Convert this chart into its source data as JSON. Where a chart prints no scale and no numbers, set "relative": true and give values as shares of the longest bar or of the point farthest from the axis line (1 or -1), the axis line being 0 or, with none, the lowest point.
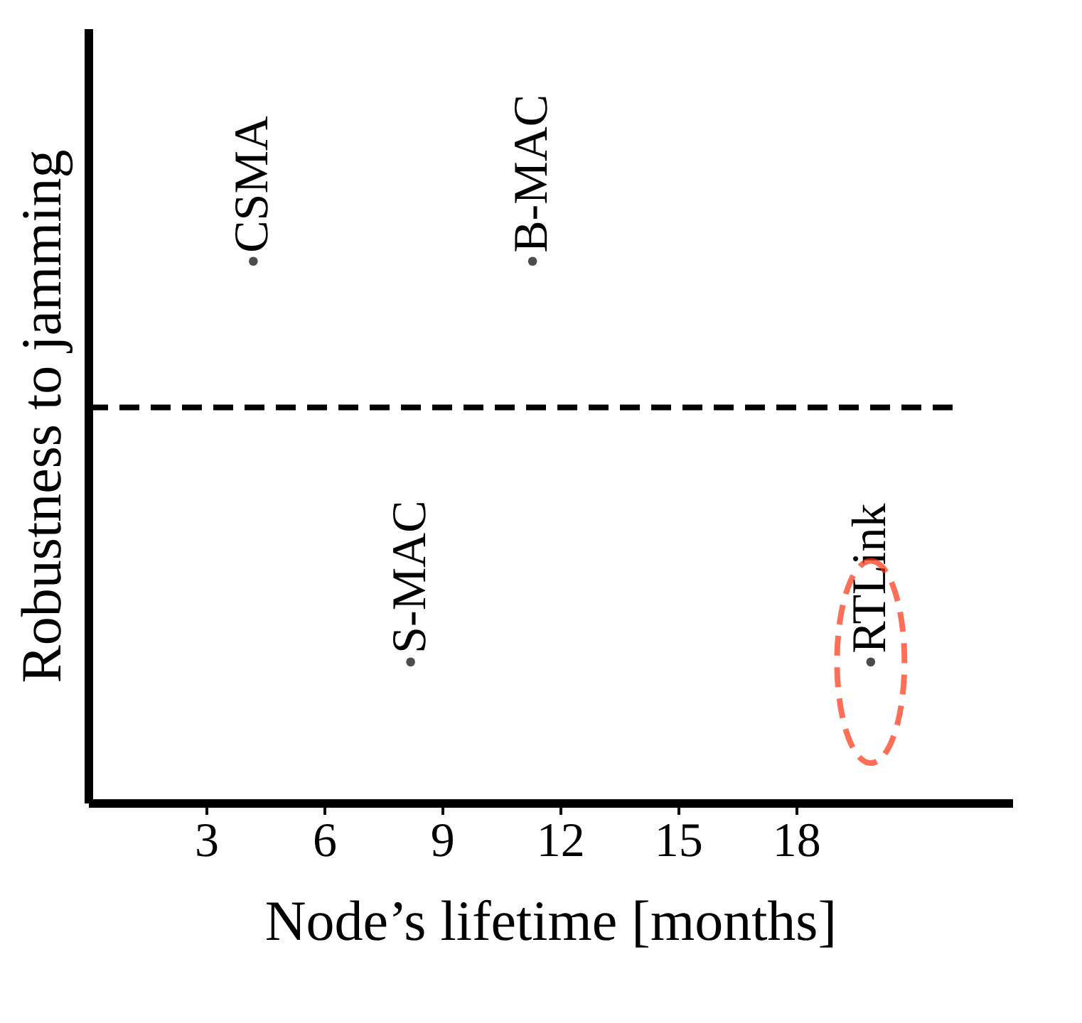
{
  "chart_data": {
    "type": "scatter",
    "relative": true,
    "xlabel": "Node’s lifetime [months]",
    "ylabel": "Robustness to jamming",
    "xlim": [
      0,
      23.5
    ],
    "xticks": [
      3,
      6,
      9,
      12,
      15,
      18
    ],
    "series": [
      {
        "color": "#000000",
        "x": [
          4.2,
          11.3,
          8.2,
          19.9
        ],
        "values": [
          1,
          1,
          0.26,
          0.26
        ]
      }
    ],
    "annotations": [
      {
        "text": "CSMA",
        "x": 4.2,
        "y": 1
      },
      {
        "text": "B-MAC",
        "x": 11.3,
        "y": 1
      },
      {
        "text": "S-MAC",
        "x": 8.2,
        "y": 0.26
      },
      {
        "text": "RTLink",
        "x": 19.9,
        "y": 0.26
      }
    ],
    "ref_lines": [
      {
        "axis": "y",
        "value": 0.73,
        "line_style": "dashed",
        "color": "#000000"
      }
    ],
    "grid": false
  }
}
